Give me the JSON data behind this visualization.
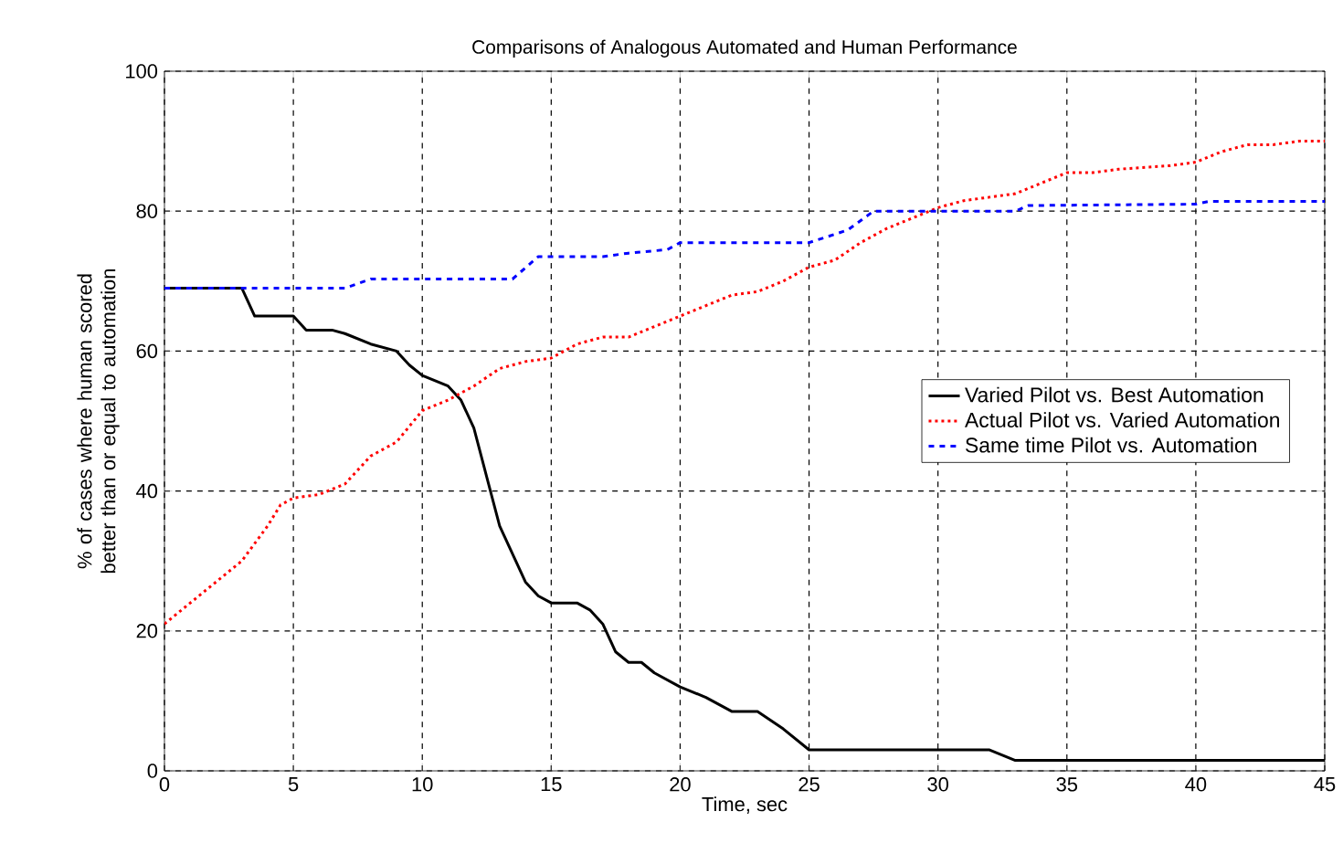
{
  "chart_data": {
    "type": "line",
    "title": "Comparisons of  Analogous Automated and Human Performance",
    "xlabel": "Time, sec",
    "ylabel": "% of cases where human scored better than or equal to automation",
    "xlim": [
      0,
      45
    ],
    "ylim": [
      0,
      100
    ],
    "xticks": [
      0,
      5,
      10,
      15,
      20,
      25,
      30,
      35,
      40,
      45
    ],
    "yticks": [
      0,
      20,
      40,
      60,
      80,
      100
    ],
    "grid": true,
    "legend": "right",
    "series": [
      {
        "name": "Varied Pilot vs. Best Automation",
        "color": "#000000",
        "line_style": "solid",
        "x": [
          0,
          3,
          3.5,
          5,
          5.5,
          6.5,
          7,
          8,
          9,
          9.5,
          10,
          11,
          11.5,
          12,
          12.5,
          13,
          14,
          14.5,
          15,
          16,
          16.5,
          17,
          17.5,
          18,
          18.5,
          19,
          20,
          21,
          22,
          23,
          24,
          25,
          32,
          33,
          45
        ],
        "values": [
          69,
          69,
          65,
          65,
          63,
          63,
          62.5,
          61,
          60,
          58,
          56.5,
          55,
          53,
          49,
          42,
          35,
          27,
          25,
          24,
          24,
          23,
          21,
          17,
          15.5,
          15.5,
          14,
          12,
          10.5,
          8.5,
          8.5,
          6,
          3,
          3,
          1.5,
          1.5
        ]
      },
      {
        "name": "Actual Pilot vs. Varied Automation",
        "color": "#ff0000",
        "line_style": "dotted",
        "x": [
          0,
          1,
          2,
          3,
          4,
          4.5,
          5,
          6,
          7,
          8,
          9,
          10,
          11,
          12,
          13,
          14,
          15,
          16,
          17,
          18,
          19,
          20,
          21,
          22,
          23,
          24,
          25,
          26,
          27,
          28,
          29,
          30,
          31,
          32,
          33,
          34,
          35,
          36,
          37,
          39,
          40,
          41,
          42,
          43,
          44,
          45
        ],
        "values": [
          21,
          24,
          27,
          30,
          35,
          38,
          39,
          39.5,
          41,
          45,
          47,
          51.5,
          53,
          55,
          57.5,
          58.5,
          59,
          61,
          62,
          62,
          63.5,
          65,
          66.5,
          68,
          68.5,
          70,
          72,
          73,
          75.5,
          77.5,
          79,
          80.5,
          81.5,
          82,
          82.5,
          84,
          85.5,
          85.5,
          86,
          86.5,
          87,
          88.5,
          89.5,
          89.5,
          90,
          90
        ]
      },
      {
        "name": "Same time Pilot vs. Automation",
        "color": "#0000ff",
        "line_style": "dashed",
        "x": [
          0,
          7,
          8,
          13.5,
          14.5,
          17,
          18,
          19.5,
          20,
          25,
          26.5,
          27.5,
          33,
          33.5,
          40,
          40.5,
          45
        ],
        "values": [
          69,
          69,
          70.3,
          70.3,
          73.5,
          73.5,
          74,
          74.5,
          75.5,
          75.5,
          77.3,
          80,
          80,
          80.8,
          81,
          81.4,
          81.4
        ]
      }
    ]
  }
}
